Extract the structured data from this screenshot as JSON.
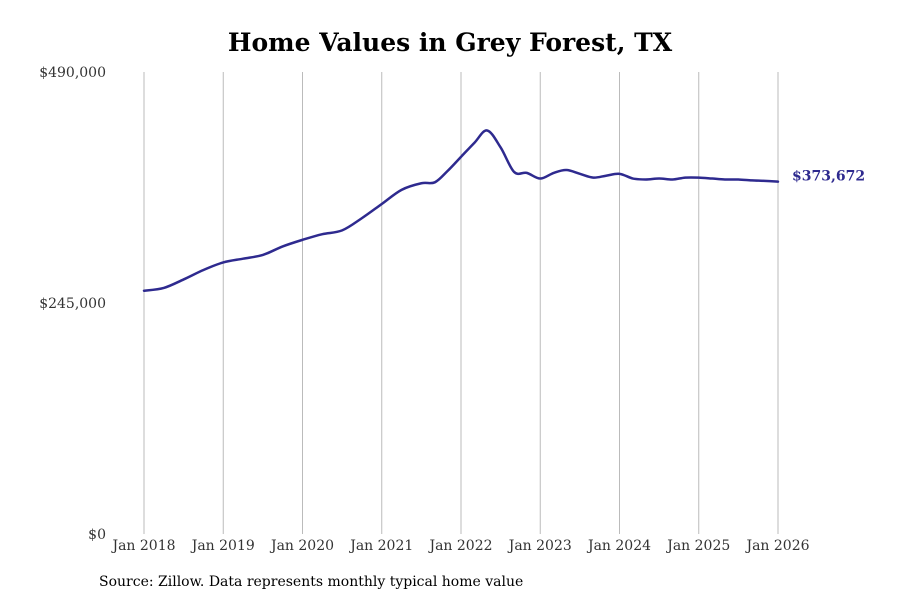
{
  "chart_data": {
    "type": "line",
    "title": "Home Values in Grey Forest, TX",
    "xlabel": "",
    "ylabel": "",
    "grid": "vertical",
    "ylim": [
      0,
      490000
    ],
    "xlim": [
      2018.0,
      2026.0
    ],
    "y_ticks": [
      {
        "value": 0,
        "label": "$0"
      },
      {
        "value": 245000,
        "label": "$245,000"
      },
      {
        "value": 490000,
        "label": "$490,000"
      }
    ],
    "x_ticks": [
      {
        "value": 2018.0,
        "label": "Jan 2018"
      },
      {
        "value": 2019.0,
        "label": "Jan 2019"
      },
      {
        "value": 2020.0,
        "label": "Jan 2020"
      },
      {
        "value": 2021.0,
        "label": "Jan 2021"
      },
      {
        "value": 2022.0,
        "label": "Jan 2022"
      },
      {
        "value": 2023.0,
        "label": "Jan 2023"
      },
      {
        "value": 2024.0,
        "label": "Jan 2024"
      },
      {
        "value": 2025.0,
        "label": "Jan 2025"
      },
      {
        "value": 2026.0,
        "label": "Jan 2026"
      }
    ],
    "series": [
      {
        "name": "Typical home value",
        "color": "#2e2a8f",
        "end_label": "$373,672",
        "x": [
          2018.0,
          2018.25,
          2018.5,
          2018.75,
          2019.0,
          2019.25,
          2019.5,
          2019.75,
          2020.0,
          2020.25,
          2020.5,
          2020.75,
          2021.0,
          2021.25,
          2021.5,
          2021.67,
          2021.83,
          2022.0,
          2022.17,
          2022.33,
          2022.5,
          2022.67,
          2022.83,
          2023.0,
          2023.17,
          2023.33,
          2023.5,
          2023.67,
          2023.83,
          2024.0,
          2024.17,
          2024.33,
          2024.5,
          2024.67,
          2024.83,
          2025.0,
          2025.17,
          2025.33,
          2025.5,
          2025.67,
          2025.83,
          2026.0
        ],
        "values": [
          258000,
          261000,
          270000,
          280000,
          288000,
          292000,
          296000,
          305000,
          312000,
          318000,
          322000,
          335000,
          350000,
          365000,
          372000,
          373000,
          385000,
          400000,
          415000,
          428000,
          410000,
          384000,
          383000,
          377000,
          383000,
          386000,
          382000,
          378000,
          380000,
          382000,
          377000,
          376000,
          377000,
          376000,
          378000,
          378000,
          377000,
          376000,
          376000,
          375000,
          374500,
          373672
        ]
      }
    ]
  },
  "source_note": "Source: Zillow. Data represents monthly typical home value",
  "colors": {
    "line": "#2e2a8f",
    "grid": "#bbbbbb",
    "background": "#ffffff"
  }
}
